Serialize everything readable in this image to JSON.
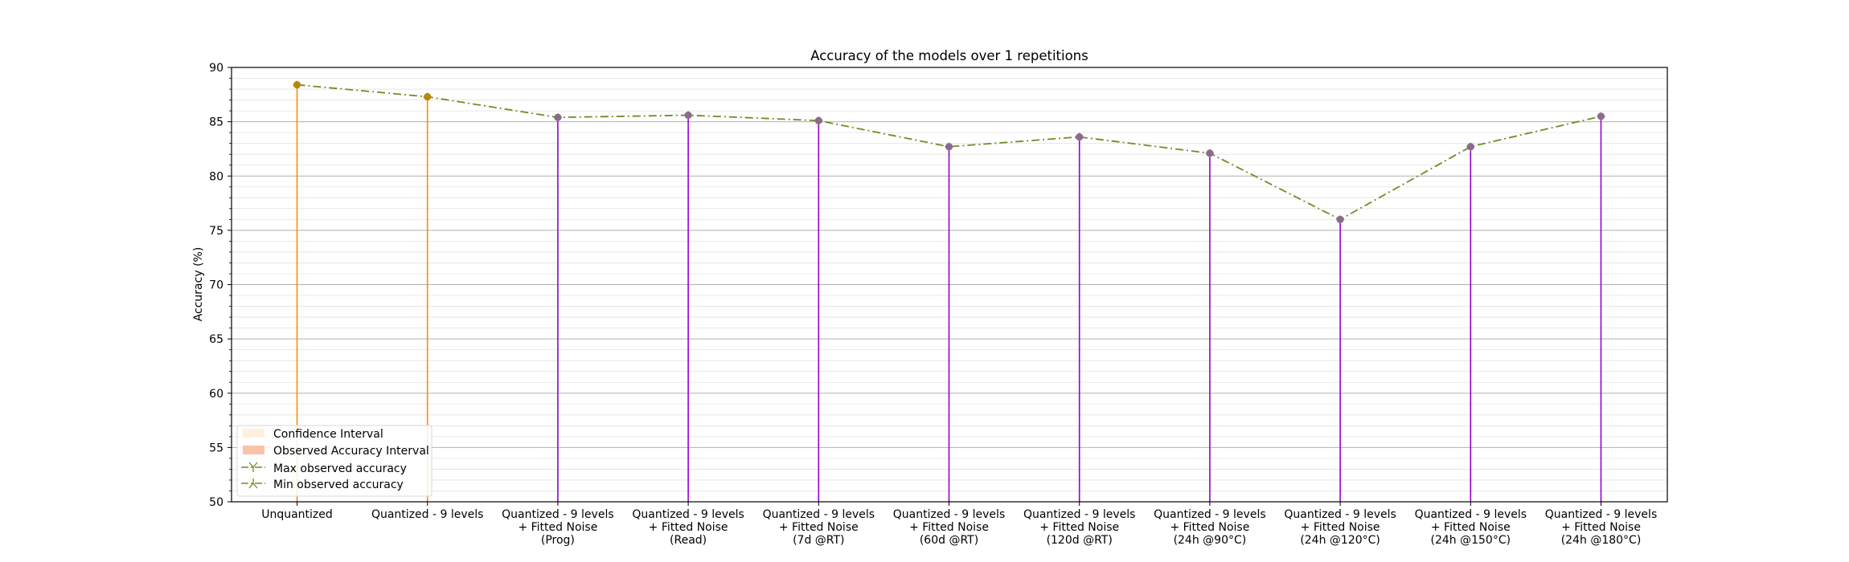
{
  "chart_data": {
    "type": "line",
    "title": "Accuracy of the models over 1 repetitions",
    "ylabel": "Accuracy (%)",
    "xlabel": "",
    "ylim": [
      50,
      90
    ],
    "yticks": [
      "50",
      "55",
      "60",
      "65",
      "70",
      "75",
      "80",
      "85",
      "90"
    ],
    "grid": "horizontal major and minor",
    "categories": [
      [
        "Unquantized"
      ],
      [
        "Quantized - 9 levels"
      ],
      [
        "Quantized - 9 levels",
        "+ Fitted Noise",
        "(Prog)"
      ],
      [
        "Quantized - 9 levels",
        "+ Fitted Noise",
        "(Read)"
      ],
      [
        "Quantized - 9 levels",
        "+ Fitted Noise",
        "(7d @RT)"
      ],
      [
        "Quantized - 9 levels",
        "+ Fitted Noise",
        "(60d @RT)"
      ],
      [
        "Quantized - 9 levels",
        "+ Fitted Noise",
        "(120d @RT)"
      ],
      [
        "Quantized - 9 levels",
        "+ Fitted Noise",
        "(24h @90°C)"
      ],
      [
        "Quantized - 9 levels",
        "+ Fitted Noise",
        "(24h @120°C)"
      ],
      [
        "Quantized - 9 levels",
        "+ Fitted Noise",
        "(24h @150°C)"
      ],
      [
        "Quantized - 9 levels",
        "+ Fitted Noise",
        "(24h @180°C)"
      ]
    ],
    "series": [
      {
        "name": "Max observed accuracy",
        "values": [
          88.4,
          87.3,
          85.4,
          85.6,
          85.1,
          82.7,
          83.6,
          82.1,
          76.0,
          82.7,
          85.5
        ]
      },
      {
        "name": "Min observed accuracy",
        "values": [
          88.4,
          87.3,
          85.4,
          85.6,
          85.1,
          82.7,
          83.6,
          82.1,
          76.0,
          82.7,
          85.5
        ]
      }
    ],
    "bar_colors": [
      "#ff8c00",
      "#ff8c00",
      "#9400d3",
      "#9400d3",
      "#9400d3",
      "#9400d3",
      "#9400d3",
      "#9400d3",
      "#9400d3",
      "#9400d3",
      "#9400d3"
    ],
    "legend": {
      "location": "lower-left",
      "entries": [
        "Confidence Interval",
        "Observed Accuracy Interval",
        "Max observed accuracy",
        "Min observed accuracy"
      ]
    },
    "colors": {
      "line": "#6b8e23",
      "marker_early": "#b8860b",
      "marker_late": "#8b6b8b",
      "confidence": "#fdf0dc",
      "observed": "#f8c3a8"
    }
  }
}
